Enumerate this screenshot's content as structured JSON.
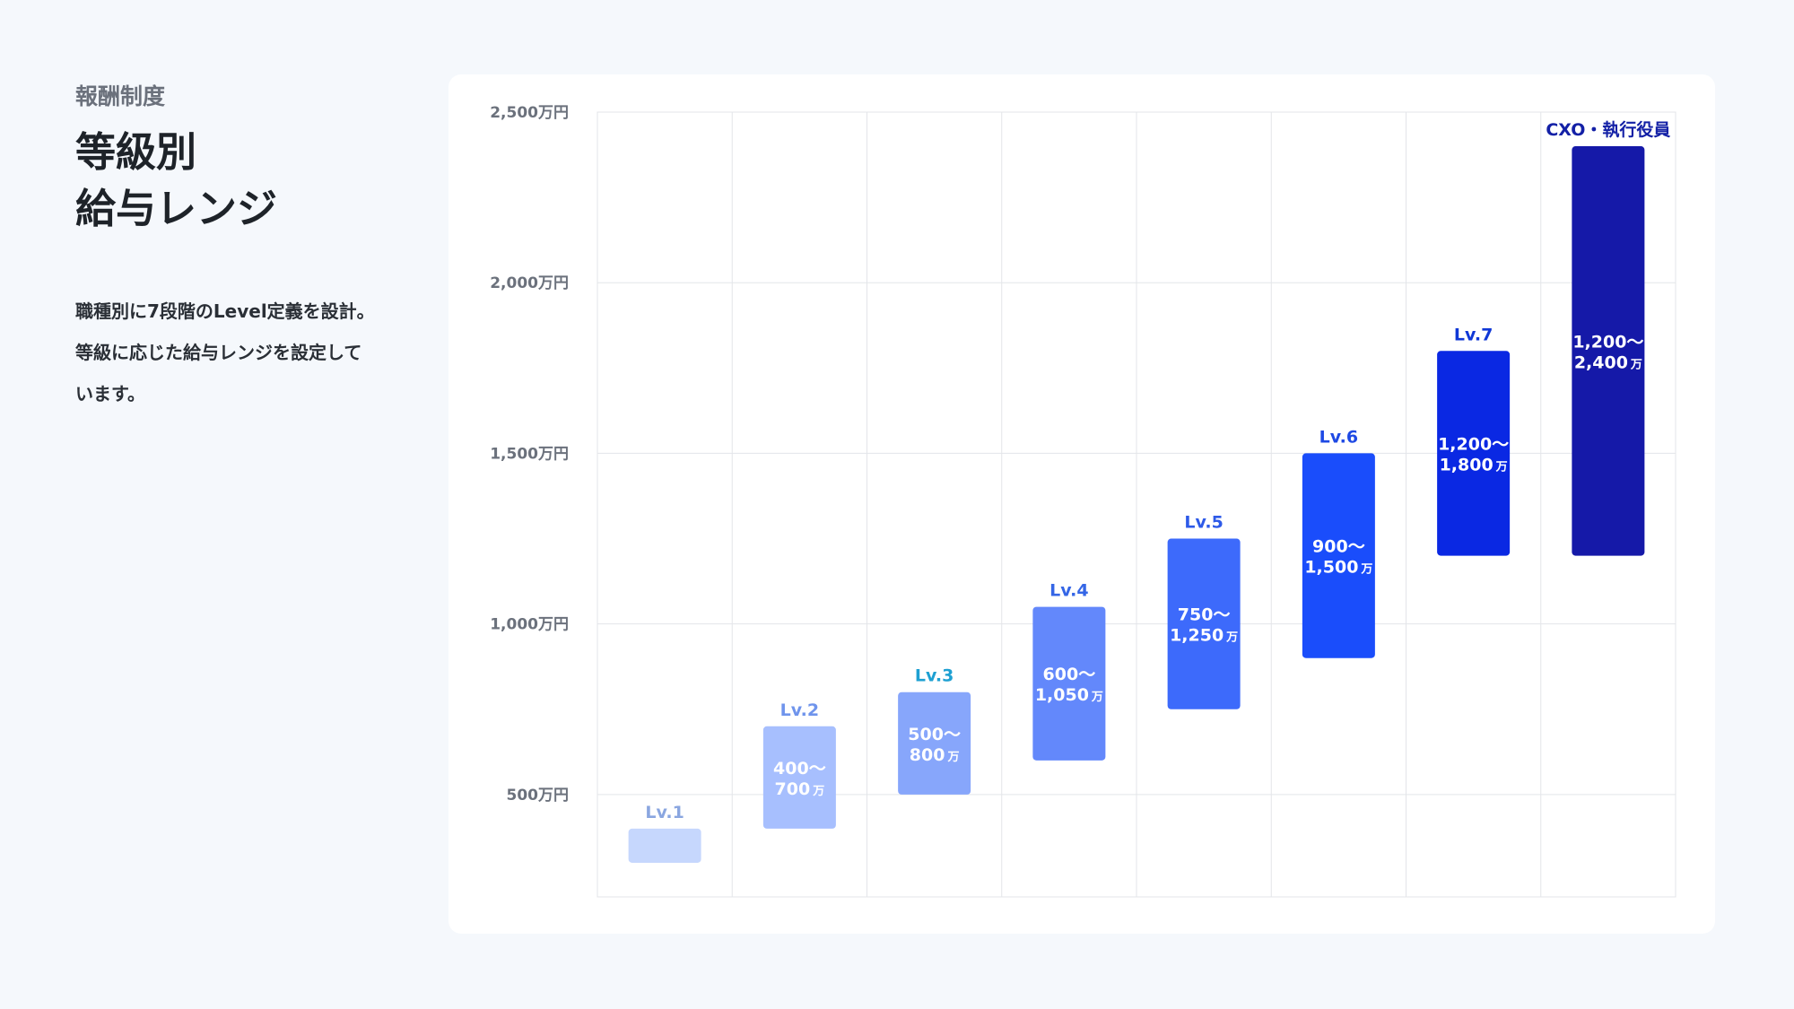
{
  "header": {
    "section": "報酬制度",
    "title_line1": "等級別",
    "title_line2": "給与レンジ",
    "description_lines": [
      "職種別に7段階のLevel定義を設計。",
      "等級に応じた給与レンジを設定して",
      "います。"
    ]
  },
  "chart_data": {
    "type": "bar",
    "orientation": "vertical-floating-range",
    "y_unit": "万円",
    "ylim": [
      200,
      2500
    ],
    "y_ticks": [
      500,
      1000,
      1500,
      2000,
      2500
    ],
    "y_tick_labels": [
      "500万円",
      "1,000万円",
      "1,500万円",
      "2,000万円",
      "2,500万円"
    ],
    "grid": true,
    "categories": [
      "Lv.1",
      "Lv.2",
      "Lv.3",
      "Lv.4",
      "Lv.5",
      "Lv.6",
      "Lv.7",
      "CXO・執行役員"
    ],
    "bars": [
      {
        "label": "Lv.1",
        "low": 300,
        "high": 400,
        "range_line1": "",
        "range_line2": "",
        "unit": "",
        "color": "#c6d7fd",
        "label_color": "#8aa6e0"
      },
      {
        "label": "Lv.2",
        "low": 400,
        "high": 700,
        "range_line1": "400～",
        "range_line2": "700",
        "unit": "万",
        "color": "#a7bffe",
        "label_color": "#6f94ec"
      },
      {
        "label": "Lv.3",
        "low": 500,
        "high": 800,
        "range_line1": "500～",
        "range_line2": "800",
        "unit": "万",
        "color": "#87a6fb",
        "label_color": "#1ea0d2"
      },
      {
        "label": "Lv.4",
        "low": 600,
        "high": 1050,
        "range_line1": "600～",
        "range_line2": "1,050",
        "unit": "万",
        "color": "#6388fb",
        "label_color": "#3566e6"
      },
      {
        "label": "Lv.5",
        "low": 750,
        "high": 1250,
        "range_line1": "750～",
        "range_line2": "1,250",
        "unit": "万",
        "color": "#3d6afb",
        "label_color": "#2d5ae8"
      },
      {
        "label": "Lv.6",
        "low": 900,
        "high": 1500,
        "range_line1": "900～",
        "range_line2": "1,500",
        "unit": "万",
        "color": "#1a4dfb",
        "label_color": "#1e49e4"
      },
      {
        "label": "Lv.7",
        "low": 1200,
        "high": 1800,
        "range_line1": "1,200～",
        "range_line2": "1,800",
        "unit": "万",
        "color": "#0a28e3",
        "label_color": "#1038d6"
      },
      {
        "label": "CXO・執行役員",
        "low": 1200,
        "high": 2400,
        "range_line1": "1,200～",
        "range_line2": "2,400",
        "unit": "万",
        "color": "#1519a8",
        "label_color": "#1320a6"
      }
    ]
  },
  "colors": {
    "background": "#f5f8fc",
    "card": "#ffffff",
    "grid": "#e3e5e9"
  }
}
